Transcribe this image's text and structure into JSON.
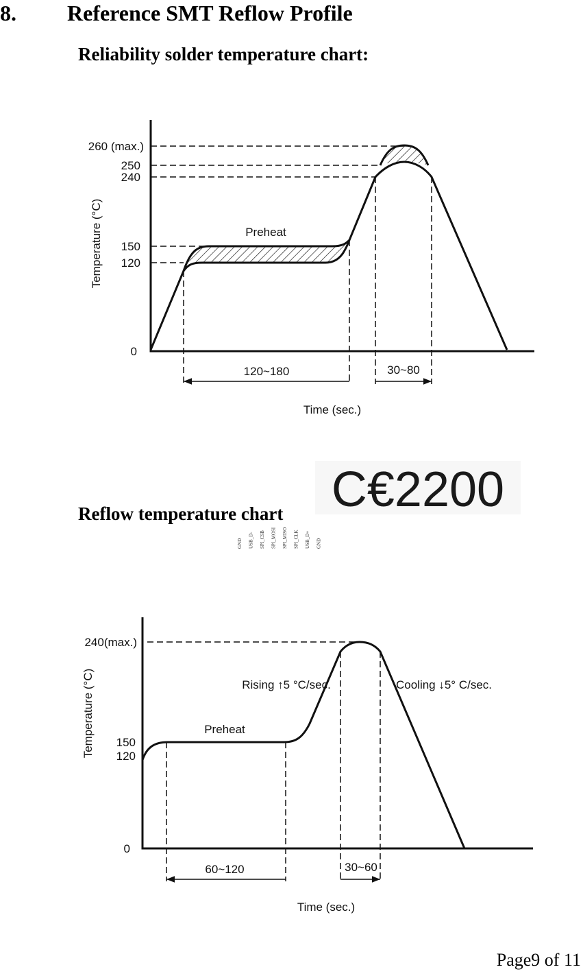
{
  "header": {
    "number": "8.",
    "title": "Reference SMT Reflow Profile"
  },
  "section1": {
    "title": "Reliability solder temperature chart:"
  },
  "chart1": {
    "labels": [
      "260 (max.)",
      "250",
      "240",
      "150",
      "120",
      "0"
    ],
    "y_axis_title": "Temperature (°C)",
    "x_axis_title": "Time (sec.)",
    "zone": "Preheat",
    "preheat_time": "120~180",
    "reflow_time": "30~80"
  },
  "logo": {
    "text": "C€2200"
  },
  "section2": {
    "title": "Reflow temperature chart"
  },
  "pins": [
    "GND",
    "USB_D-",
    "SPI_CSB",
    "SPI_MOSI",
    "SPI_MISO",
    "SPI_CLK",
    "USB_D+",
    "GND"
  ],
  "chart2": {
    "labels": [
      "240(max.)",
      "150",
      "120",
      "0"
    ],
    "y_axis_title": "Temperature (°C)",
    "x_axis_title": "Time (sec.)",
    "zone": "Preheat",
    "rising": "Rising ↑5 °C/sec.",
    "cooling": "Cooling ↓5° C/sec.",
    "preheat_time": "60~120",
    "reflow_time": "30~60"
  },
  "footer": {
    "page": "Page9 of 11"
  }
}
